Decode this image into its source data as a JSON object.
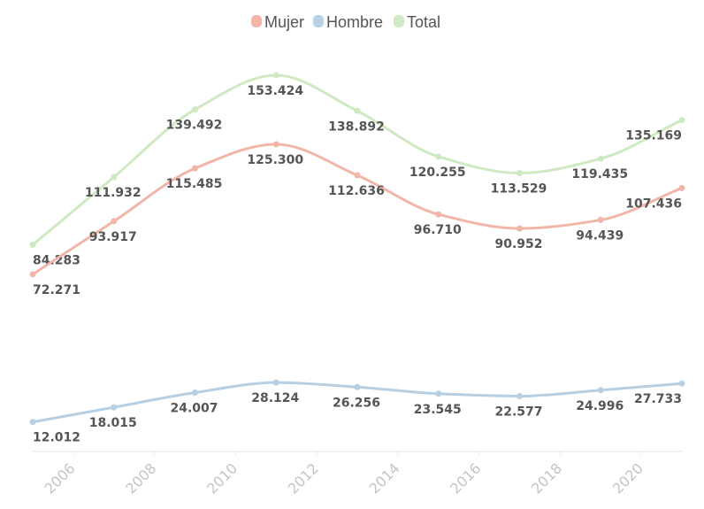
{
  "chart_data": {
    "type": "line",
    "x": [
      2005,
      2007,
      2009,
      2011,
      2013,
      2015,
      2017,
      2019,
      2021
    ],
    "series": [
      {
        "name": "Mujer",
        "color": "#f2b6a9",
        "values": [
          72271,
          93917,
          115485,
          125300,
          112636,
          96710,
          90952,
          94439,
          107436
        ],
        "labels": [
          "72.271",
          "93.917",
          "115.485",
          "125.300",
          "112.636",
          "96.710",
          "90.952",
          "94.439",
          "107.436"
        ]
      },
      {
        "name": "Hombre",
        "color": "#b6cfe3",
        "values": [
          12012,
          18015,
          24007,
          28124,
          26256,
          23545,
          22577,
          24996,
          27733
        ],
        "labels": [
          "12.012",
          "18.015",
          "24.007",
          "28.124",
          "26.256",
          "23.545",
          "22.577",
          "24.996",
          "27.733"
        ]
      },
      {
        "name": "Total",
        "color": "#cfe9c2",
        "values": [
          84283,
          111932,
          139492,
          153424,
          138892,
          120255,
          113529,
          119435,
          135169
        ],
        "labels": [
          "84.283",
          "111.932",
          "139.492",
          "153.424",
          "138.892",
          "120.255",
          "113.529",
          "119.435",
          "135.169"
        ]
      }
    ],
    "x_ticks": [
      "2006",
      "2008",
      "2010",
      "2012",
      "2014",
      "2016",
      "2018",
      "2020"
    ],
    "x_tick_values": [
      2006,
      2008,
      2010,
      2012,
      2014,
      2016,
      2018,
      2020
    ],
    "xlim": [
      2005,
      2021
    ],
    "ylim": [
      0,
      165000
    ],
    "title": "",
    "xlabel": "",
    "ylabel": "",
    "grid": false,
    "legend_position": "top-center",
    "curve": "smooth",
    "label_color": "#555555",
    "tick_color": "#c4c4c4",
    "axis_color": "#e6e6e6"
  }
}
